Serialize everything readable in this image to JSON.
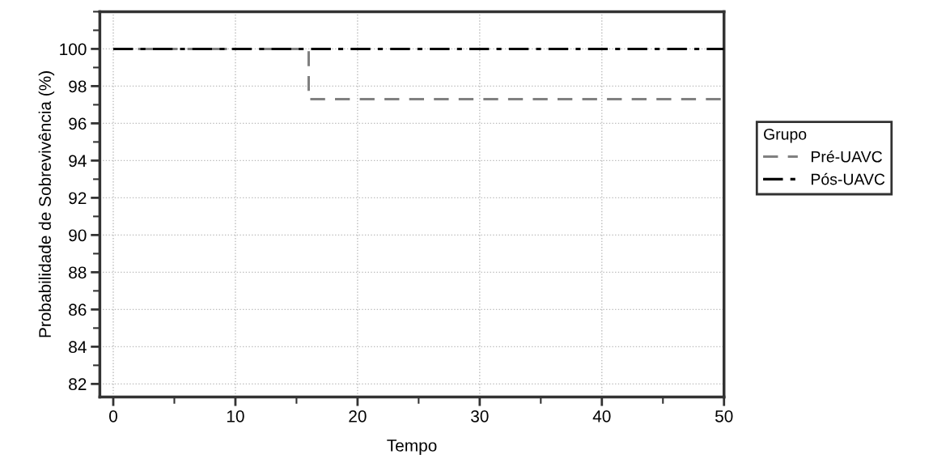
{
  "chart_data": {
    "type": "step",
    "xlabel": "Tempo",
    "ylabel": "Probabilidade de Sobrevivência (%)",
    "legend_title": "Grupo",
    "series": [
      {
        "name": "Pré-UAVC",
        "color": "#808080",
        "x": [
          0,
          16,
          50
        ],
        "values": [
          100,
          97.3,
          97.3
        ],
        "line_style": "dashed"
      },
      {
        "name": "Pós-UAVC",
        "color": "#000000",
        "x": [
          0,
          50
        ],
        "values": [
          100,
          100
        ],
        "line_style": "dashdot"
      }
    ],
    "xlim": [
      -1.1,
      50
    ],
    "ylim": [
      81.3,
      102
    ],
    "xticks": [
      0,
      10,
      20,
      30,
      40,
      50
    ],
    "yticks": [
      82,
      84,
      86,
      88,
      90,
      92,
      94,
      96,
      98,
      100
    ],
    "grid": true,
    "legend": "right"
  }
}
